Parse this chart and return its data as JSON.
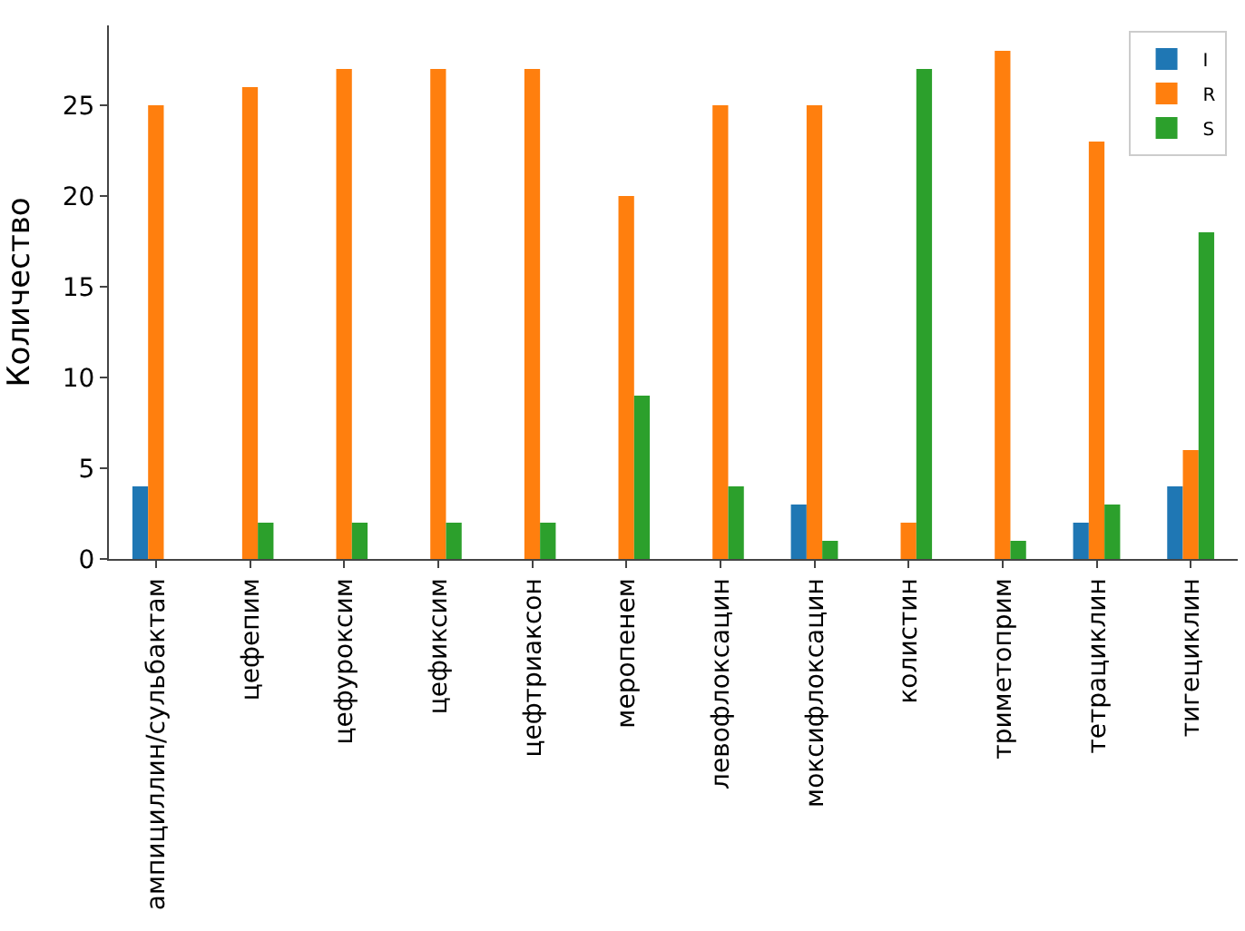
{
  "chart_data": {
    "type": "bar",
    "ylabel": "Количество",
    "categories": [
      "ампициллин/сульбактам",
      "цефепим",
      "цефуроксим",
      "цефиксим",
      "цефтриаксон",
      "меропенем",
      "левофлоксацин",
      "моксифлоксацин",
      "колистин",
      "триметоприм",
      "тетрациклин",
      "тигециклин"
    ],
    "series": [
      {
        "name": "I",
        "color": "#1f77b4",
        "values": [
          4,
          0,
          0,
          0,
          0,
          0,
          0,
          3,
          0,
          0,
          2,
          4
        ]
      },
      {
        "name": "R",
        "color": "#ff7f0e",
        "values": [
          25,
          26,
          27,
          27,
          27,
          20,
          25,
          25,
          2,
          28,
          23,
          6
        ]
      },
      {
        "name": "S",
        "color": "#2ca02c",
        "values": [
          0,
          2,
          2,
          2,
          2,
          9,
          4,
          1,
          27,
          1,
          3,
          18
        ]
      }
    ],
    "ylim": [
      0,
      29.4
    ],
    "yticks": [
      0,
      5,
      10,
      15,
      20,
      25
    ],
    "grid": false,
    "legend": "top right"
  }
}
